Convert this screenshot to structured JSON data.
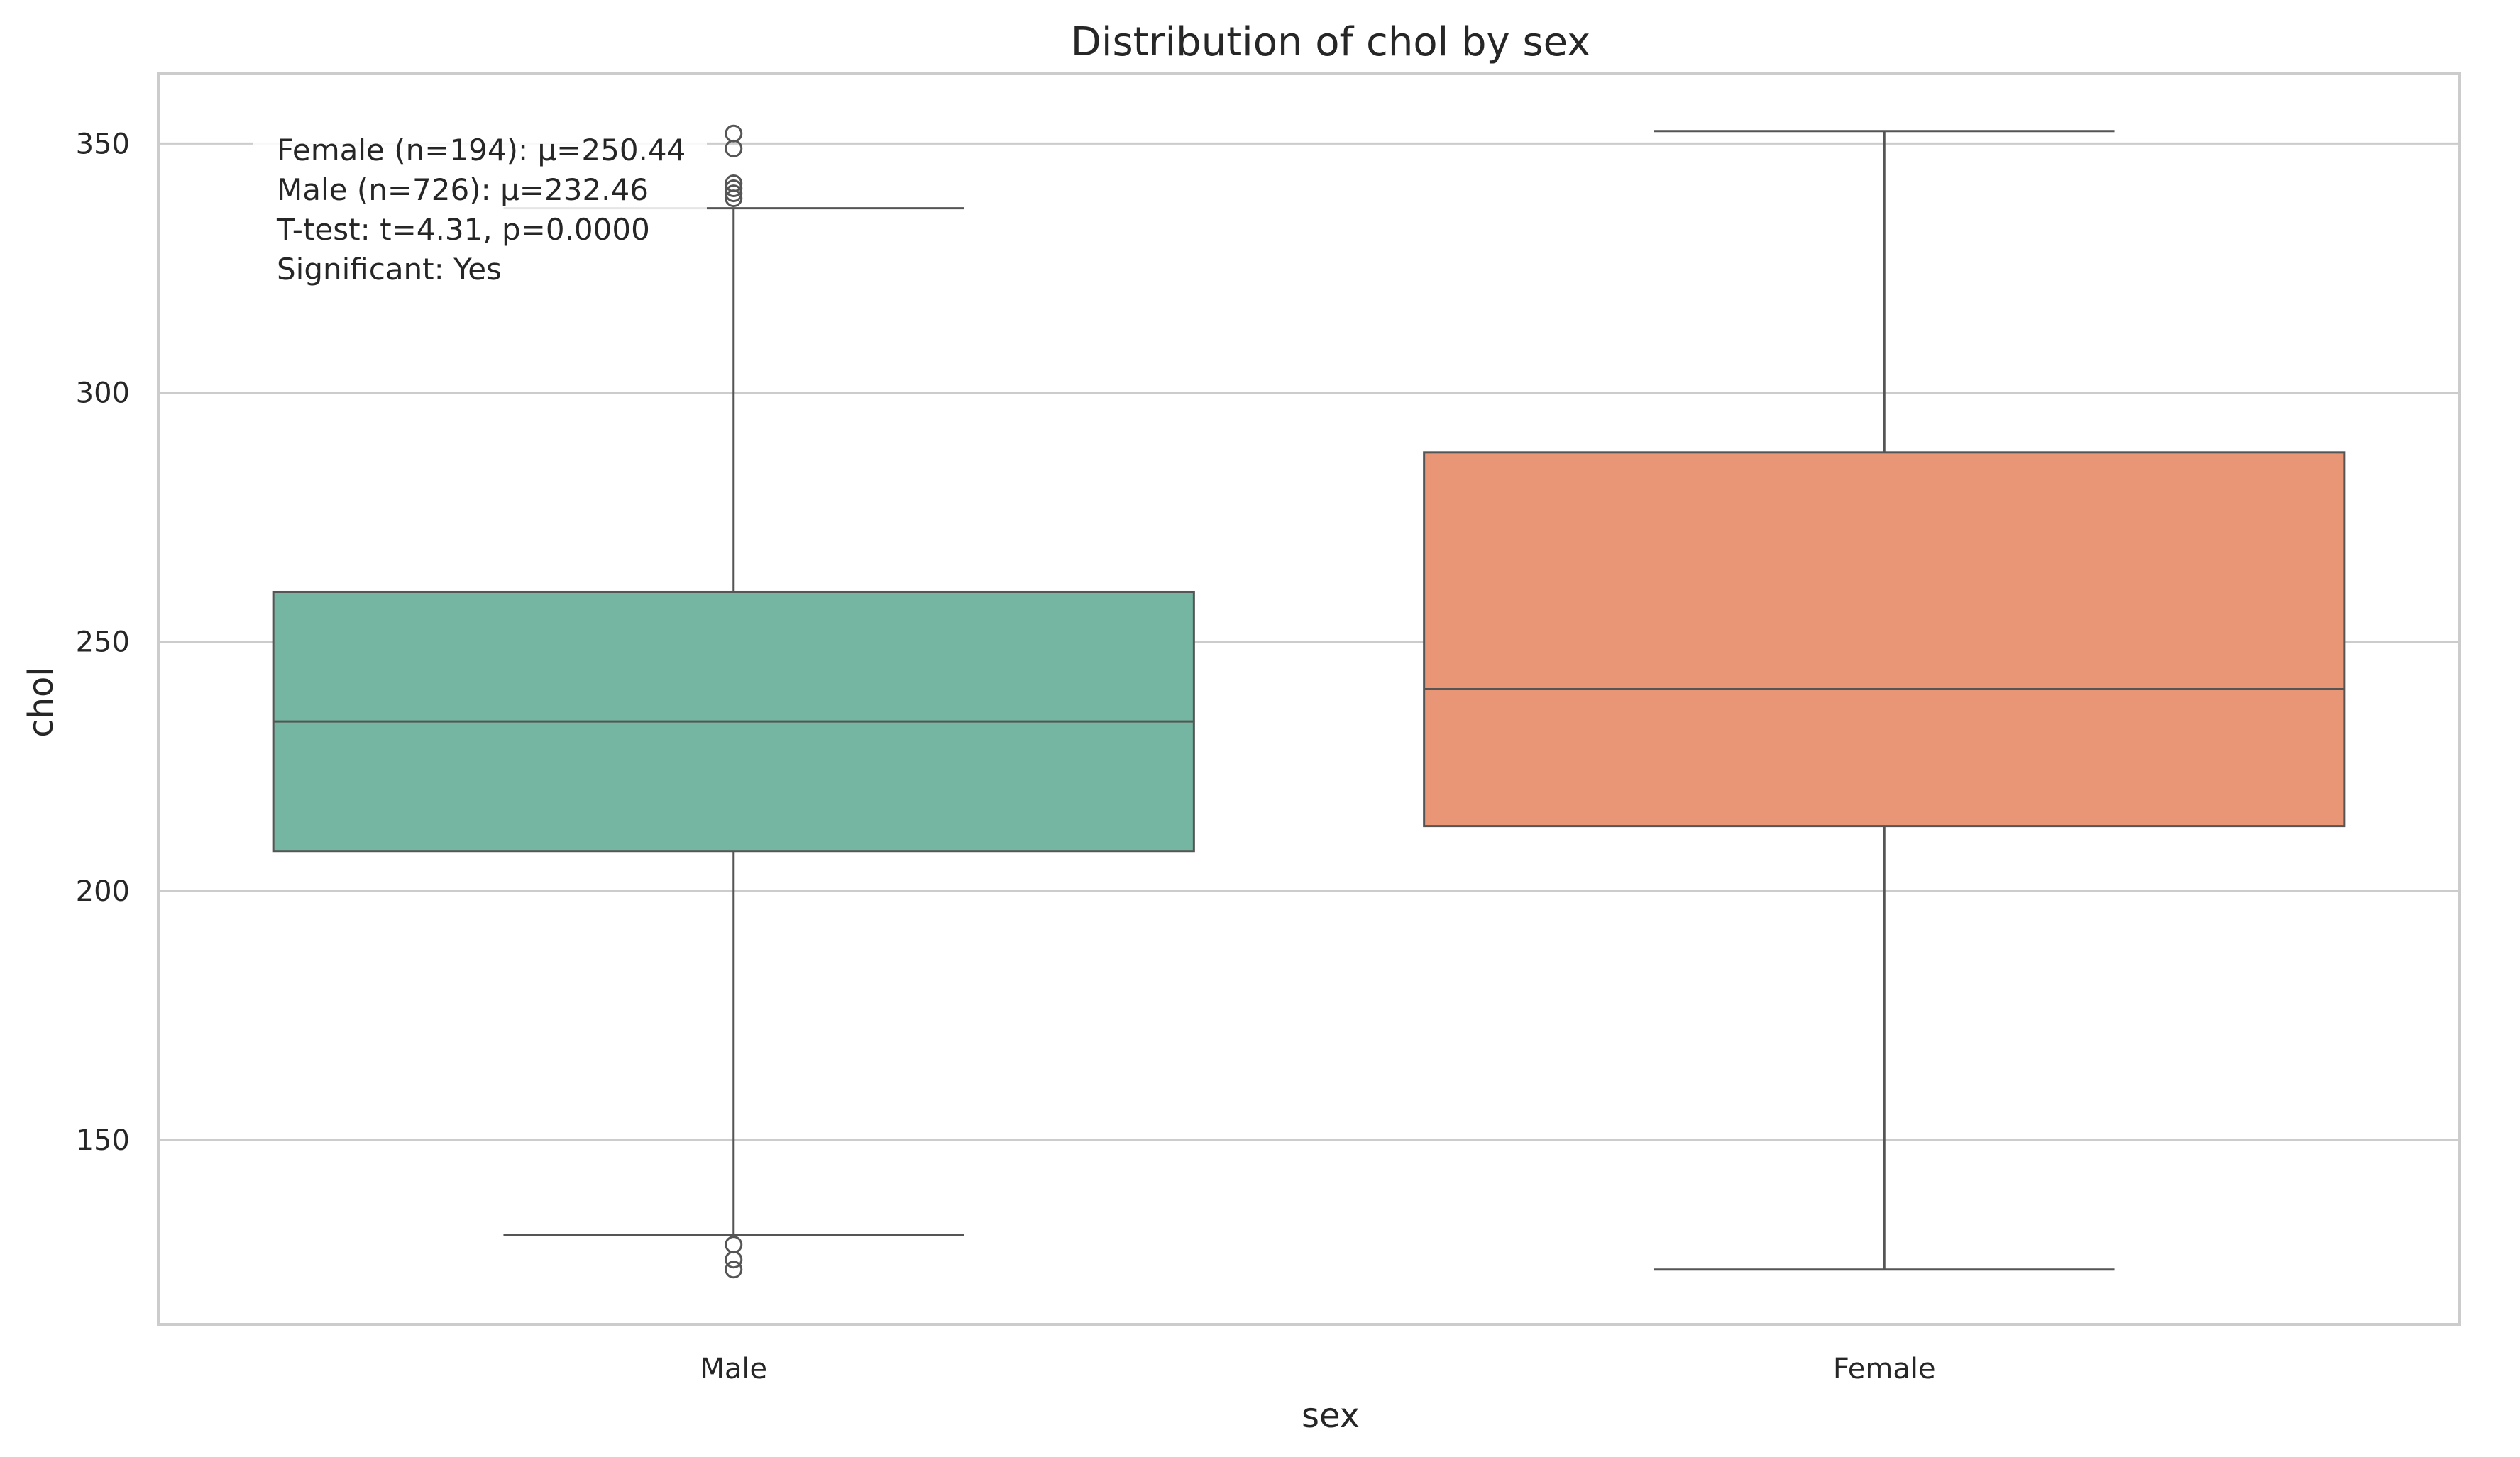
{
  "chart_data": {
    "type": "box",
    "title": "Distribution of chol by sex",
    "xlabel": "sex",
    "ylabel": "chol",
    "ylim": [
      113,
      364
    ],
    "y_ticks": [
      150,
      200,
      250,
      300,
      350
    ],
    "grid": "horizontal",
    "categories": [
      "Male",
      "Female"
    ],
    "boxes": [
      {
        "category": "Male",
        "color": "#74b6a1",
        "whisker_low": 131,
        "q1": 208,
        "median": 234,
        "q3": 260,
        "whisker_high": 337,
        "outliers": [
          352,
          349,
          342,
          341,
          340,
          339,
          129,
          126,
          124
        ]
      },
      {
        "category": "Female",
        "color": "#e89675",
        "whisker_low": 124,
        "q1": 213,
        "median": 240.5,
        "q3": 288,
        "whisker_high": 352.5,
        "outliers": []
      }
    ],
    "annotation": [
      "Female (n=194): μ=250.44",
      "Male (n=726): μ=232.46",
      "T-test: t=4.31, p=0.0000",
      "Significant: Yes"
    ]
  },
  "colors": {
    "grid": "#cccccc",
    "axes_edge": "#cccccc",
    "box_edge": "#555555"
  }
}
